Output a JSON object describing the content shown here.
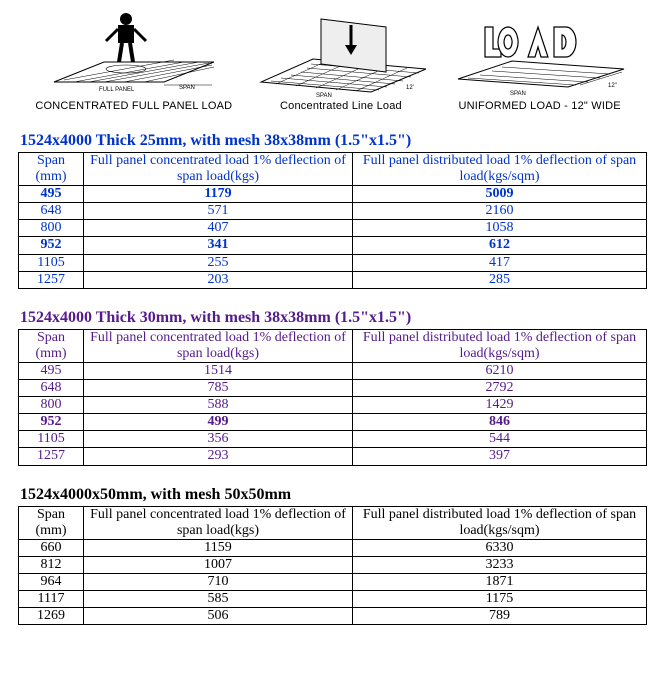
{
  "diagrams": {
    "labels": {
      "concentrated_panel": "CONCENTRATED FULL PANEL LOAD",
      "concentrated_line": "Concentrated Line Load",
      "uniform": "UNIFORMED LOAD - 12\" WIDE"
    }
  },
  "colors": {
    "blue": "#0033cc",
    "purple": "#551a8b",
    "black": "#000000",
    "border": "#000000",
    "background": "#ffffff"
  },
  "tables": [
    {
      "title": "1524x4000 Thick 25mm, with mesh 38x38mm (1.5\"x1.5\")",
      "title_color": "blue",
      "text_color": "blue",
      "head": {
        "span": "Span (mm)",
        "conc": "Full panel concentrated load 1% deflection of span load(kgs)",
        "dist": "Full panel distributed load 1% deflection of span load(kgs/sqm)"
      },
      "rows": [
        {
          "span": "495",
          "conc": "1179",
          "dist": "5009",
          "bold": true
        },
        {
          "span": "648",
          "conc": "571",
          "dist": "2160",
          "bold": false
        },
        {
          "span": "800",
          "conc": "407",
          "dist": "1058",
          "bold": false
        },
        {
          "span": "952",
          "conc": "341",
          "dist": "612",
          "bold": true
        },
        {
          "span": "1105",
          "conc": "255",
          "dist": "417",
          "bold": false
        },
        {
          "span": "1257",
          "conc": "203",
          "dist": "285",
          "bold": false
        }
      ]
    },
    {
      "title": "1524x4000  Thick 30mm, with mesh 38x38mm (1.5\"x1.5\")",
      "title_color": "purple",
      "text_color": "purple",
      "head": {
        "span": "Span (mm)",
        "conc": "Full panel concentrated load 1% deflection of span load(kgs)",
        "dist": "Full panel distributed load 1% deflection of span load(kgs/sqm)"
      },
      "rows": [
        {
          "span": "495",
          "conc": "1514",
          "dist": "6210",
          "bold": false
        },
        {
          "span": "648",
          "conc": "785",
          "dist": "2792",
          "bold": false
        },
        {
          "span": "800",
          "conc": "588",
          "dist": "1429",
          "bold": false
        },
        {
          "span": "952",
          "conc": "499",
          "dist": "846",
          "bold": true
        },
        {
          "span": "1105",
          "conc": "356",
          "dist": "544",
          "bold": false
        },
        {
          "span": "1257",
          "conc": "293",
          "dist": "397",
          "bold": false
        }
      ]
    },
    {
      "title": "1524x4000x50mm, with mesh 50x50mm",
      "title_color": "black",
      "text_color": "black",
      "head": {
        "span": "Span (mm)",
        "conc": "Full panel concentrated load 1% deflection of span load(kgs)",
        "dist": "Full panel distributed load 1% deflection of span load(kgs/sqm)"
      },
      "rows": [
        {
          "span": "660",
          "conc": "1159",
          "dist": "6330",
          "bold": false
        },
        {
          "span": "812",
          "conc": "1007",
          "dist": "3233",
          "bold": false
        },
        {
          "span": "964",
          "conc": "710",
          "dist": "1871",
          "bold": false
        },
        {
          "span": "1117",
          "conc": "585",
          "dist": "1175",
          "bold": false
        },
        {
          "span": "1269",
          "conc": "506",
          "dist": "789",
          "bold": false
        }
      ]
    }
  ]
}
